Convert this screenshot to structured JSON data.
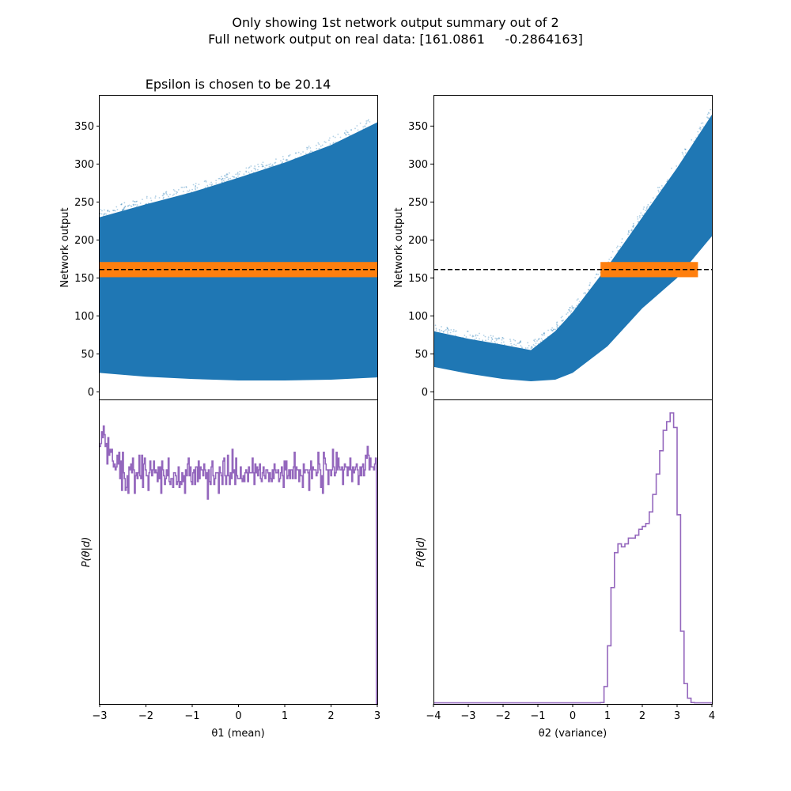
{
  "figure": {
    "suptitle_line1": "Only showing 1st network output summary out of 2",
    "suptitle_line2": "Full network output on real data: [161.0861     -0.2864163]"
  },
  "colors": {
    "scatter": "#1f77b4",
    "accepted": "#ff7f0e",
    "histogram": "#9467bd",
    "target_line": "#000000"
  },
  "chart_data": [
    {
      "type": "scatter",
      "title": "Epsilon is chosen to be 20.14",
      "ylabel": "Network output",
      "xlim": [
        -3,
        3
      ],
      "ylim": [
        -10,
        390
      ],
      "yticks": [
        0,
        50,
        100,
        150,
        200,
        250,
        300,
        350
      ],
      "target_value": 161.0861,
      "epsilon": 20.14,
      "accepted_band": [
        151,
        171
      ],
      "cloud_x": [
        -3,
        -2,
        -1,
        0,
        1,
        2,
        3
      ],
      "cloud_upper": [
        230,
        247,
        263,
        282,
        302,
        325,
        355
      ],
      "cloud_lower": [
        25,
        20,
        17,
        15,
        15,
        16,
        19
      ]
    },
    {
      "type": "scatter",
      "ylabel": "Network output",
      "xlim": [
        -4,
        4
      ],
      "ylim": [
        -10,
        390
      ],
      "yticks": [
        0,
        50,
        100,
        150,
        200,
        250,
        300,
        350
      ],
      "target_value": 161.0861,
      "accepted_x_range": [
        0.8,
        3.6
      ],
      "cloud_x": [
        -4,
        -3,
        -2,
        -1.2,
        -0.5,
        0,
        1,
        2,
        3,
        4
      ],
      "cloud_upper": [
        80,
        70,
        62,
        55,
        80,
        105,
        165,
        230,
        295,
        365
      ],
      "cloud_lower": [
        33,
        24,
        17,
        14,
        16,
        25,
        60,
        110,
        150,
        205
      ]
    },
    {
      "type": "histogram",
      "xlabel": "θ1 (mean)",
      "ylabel": "P(θ|d)",
      "xlim": [
        -3,
        3
      ],
      "xticks": [
        -3,
        -2,
        -1,
        0,
        1,
        2,
        3
      ],
      "bin_width": 0.06,
      "values": [
        0.88,
        0.89,
        0.93,
        0.91,
        0.95,
        0.92,
        0.88,
        0.89,
        0.82,
        0.91,
        0.85,
        0.87,
        0.86,
        0.87,
        0.83,
        0.81,
        0.82,
        0.8,
        0.81,
        0.85,
        0.82,
        0.86,
        0.77,
        0.83,
        0.73,
        0.86,
        0.79,
        0.77,
        0.73,
        0.74,
        0.78,
        0.72,
        0.81,
        0.8,
        0.82,
        0.79,
        0.84,
        0.8,
        0.72,
        0.78,
        0.79,
        0.77,
        0.79,
        0.85,
        0.78,
        0.77,
        0.85,
        0.74,
        0.82,
        0.84,
        0.8,
        0.78,
        0.78,
        0.73,
        0.79,
        0.83,
        0.8,
        0.78,
        0.8,
        0.83,
        0.79,
        0.8,
        0.79,
        0.76,
        0.81,
        0.77,
        0.81,
        0.72,
        0.83,
        0.8,
        0.78,
        0.75,
        0.77,
        0.8,
        0.78,
        0.84,
        0.76,
        0.75,
        0.77,
        0.77,
        0.74,
        0.79,
        0.79,
        0.78,
        0.75,
        0.76,
        0.81,
        0.74,
        0.76,
        0.75,
        0.79,
        0.76,
        0.78,
        0.72,
        0.8,
        0.78,
        0.82,
        0.84,
        0.78,
        0.81,
        0.76,
        0.75,
        0.79,
        0.8,
        0.75,
        0.81,
        0.81,
        0.76,
        0.83,
        0.77,
        0.81,
        0.8,
        0.8,
        0.78,
        0.82,
        0.8,
        0.77,
        0.79,
        0.7,
        0.8,
        0.76,
        0.75,
        0.81,
        0.83,
        0.78,
        0.75,
        0.77,
        0.79,
        0.79,
        0.79,
        0.72,
        0.81,
        0.79,
        0.78,
        0.75,
        0.83,
        0.84,
        0.78,
        0.75,
        0.78,
        0.85,
        0.78,
        0.75,
        0.79,
        0.77,
        0.87,
        0.79,
        0.8,
        0.75,
        0.84,
        0.78,
        0.77,
        0.77,
        0.77,
        0.81,
        0.77,
        0.76,
        0.78,
        0.76,
        0.79,
        0.8,
        0.79,
        0.76,
        0.81,
        0.79,
        0.79,
        0.79,
        0.84,
        0.79,
        0.75,
        0.82,
        0.79,
        0.81,
        0.78,
        0.8,
        0.82,
        0.77,
        0.76,
        0.79,
        0.81,
        0.78,
        0.77,
        0.8,
        0.8,
        0.79,
        0.76,
        0.79,
        0.77,
        0.76,
        0.8,
        0.77,
        0.82,
        0.8,
        0.79,
        0.79,
        0.8,
        0.76,
        0.77,
        0.79,
        0.81,
        0.78,
        0.74,
        0.83,
        0.8,
        0.83,
        0.77,
        0.78,
        0.8,
        0.77,
        0.8,
        0.8,
        0.77,
        0.81,
        0.86,
        0.77,
        0.81,
        0.8,
        0.8,
        0.76,
        0.8,
        0.78,
        0.78,
        0.74,
        0.82,
        0.79,
        0.8,
        0.8,
        0.8,
        0.79,
        0.73,
        0.8,
        0.83,
        0.77,
        0.81,
        0.8,
        0.8,
        0.8,
        0.78,
        0.79,
        0.86,
        0.82,
        0.8,
        0.74,
        0.78,
        0.72,
        0.86,
        0.84,
        0.82,
        0.8,
        0.8,
        0.75,
        0.8,
        0.8,
        0.78,
        0.8,
        0.87,
        0.81,
        0.78,
        0.79,
        0.86,
        0.8,
        0.84,
        0.81,
        0.8,
        0.8,
        0.81,
        0.75,
        0.8,
        0.82,
        0.81,
        0.81,
        0.78,
        0.81,
        0.8,
        0.84,
        0.8,
        0.76,
        0.81,
        0.79,
        0.8,
        0.81,
        0.82,
        0.8,
        0.75,
        0.78,
        0.81,
        0.78,
        0.81,
        0.82,
        0.78,
        0.8,
        0.85,
        0.84,
        0.88,
        0.85,
        0.8,
        0.84,
        0.81,
        0.81,
        0.81,
        0.8,
        0.82,
        0.84,
        0.0
      ]
    },
    {
      "type": "histogram",
      "xlabel": "θ2 (variance)",
      "ylabel": "P(θ|d)",
      "xlim": [
        -4,
        4
      ],
      "xticks": [
        -4,
        -3,
        -2,
        -1,
        0,
        1,
        2,
        3,
        4
      ],
      "bin_width": 0.1,
      "bin_start": 0.8,
      "values": [
        0.005,
        0.06,
        0.2,
        0.4,
        0.52,
        0.55,
        0.54,
        0.55,
        0.57,
        0.57,
        0.58,
        0.6,
        0.61,
        0.62,
        0.66,
        0.72,
        0.79,
        0.87,
        0.94,
        0.97,
        1.0,
        0.95,
        0.65,
        0.25,
        0.07,
        0.02,
        0.005
      ],
      "baseline": 0.004
    }
  ]
}
